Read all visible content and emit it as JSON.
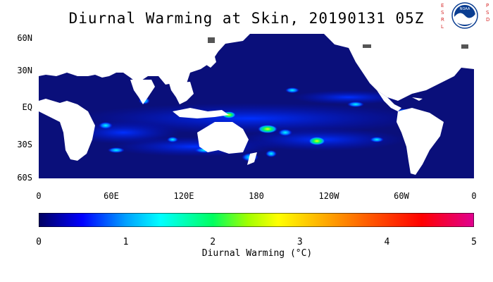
{
  "title": "Diurnal Warming at Skin, 20190131 05Z",
  "logo": {
    "left_text": "ESRL",
    "right_text": "PSD",
    "icon": "noaa-logo-icon",
    "brand": "NOAA"
  },
  "map": {
    "lat_ticks": [
      "60N",
      "30N",
      "EQ",
      "30S",
      "60S"
    ],
    "lon_ticks": [
      "0",
      "60E",
      "120E",
      "180",
      "120W",
      "60W",
      "0"
    ],
    "ocean_base_color": "#0a0f7a",
    "land_color": "#ffffff",
    "ice_color": "#555555"
  },
  "colorbar": {
    "title": "Diurnal Warming (°C)",
    "ticks": [
      "0",
      "1",
      "2",
      "3",
      "4",
      "5"
    ],
    "range": [
      0,
      5
    ],
    "colors": [
      "#000060",
      "#0000ff",
      "#00a0ff",
      "#00ffff",
      "#00ff60",
      "#a0ff00",
      "#ffff00",
      "#ffb000",
      "#ff6000",
      "#ff0000",
      "#e00090"
    ]
  }
}
